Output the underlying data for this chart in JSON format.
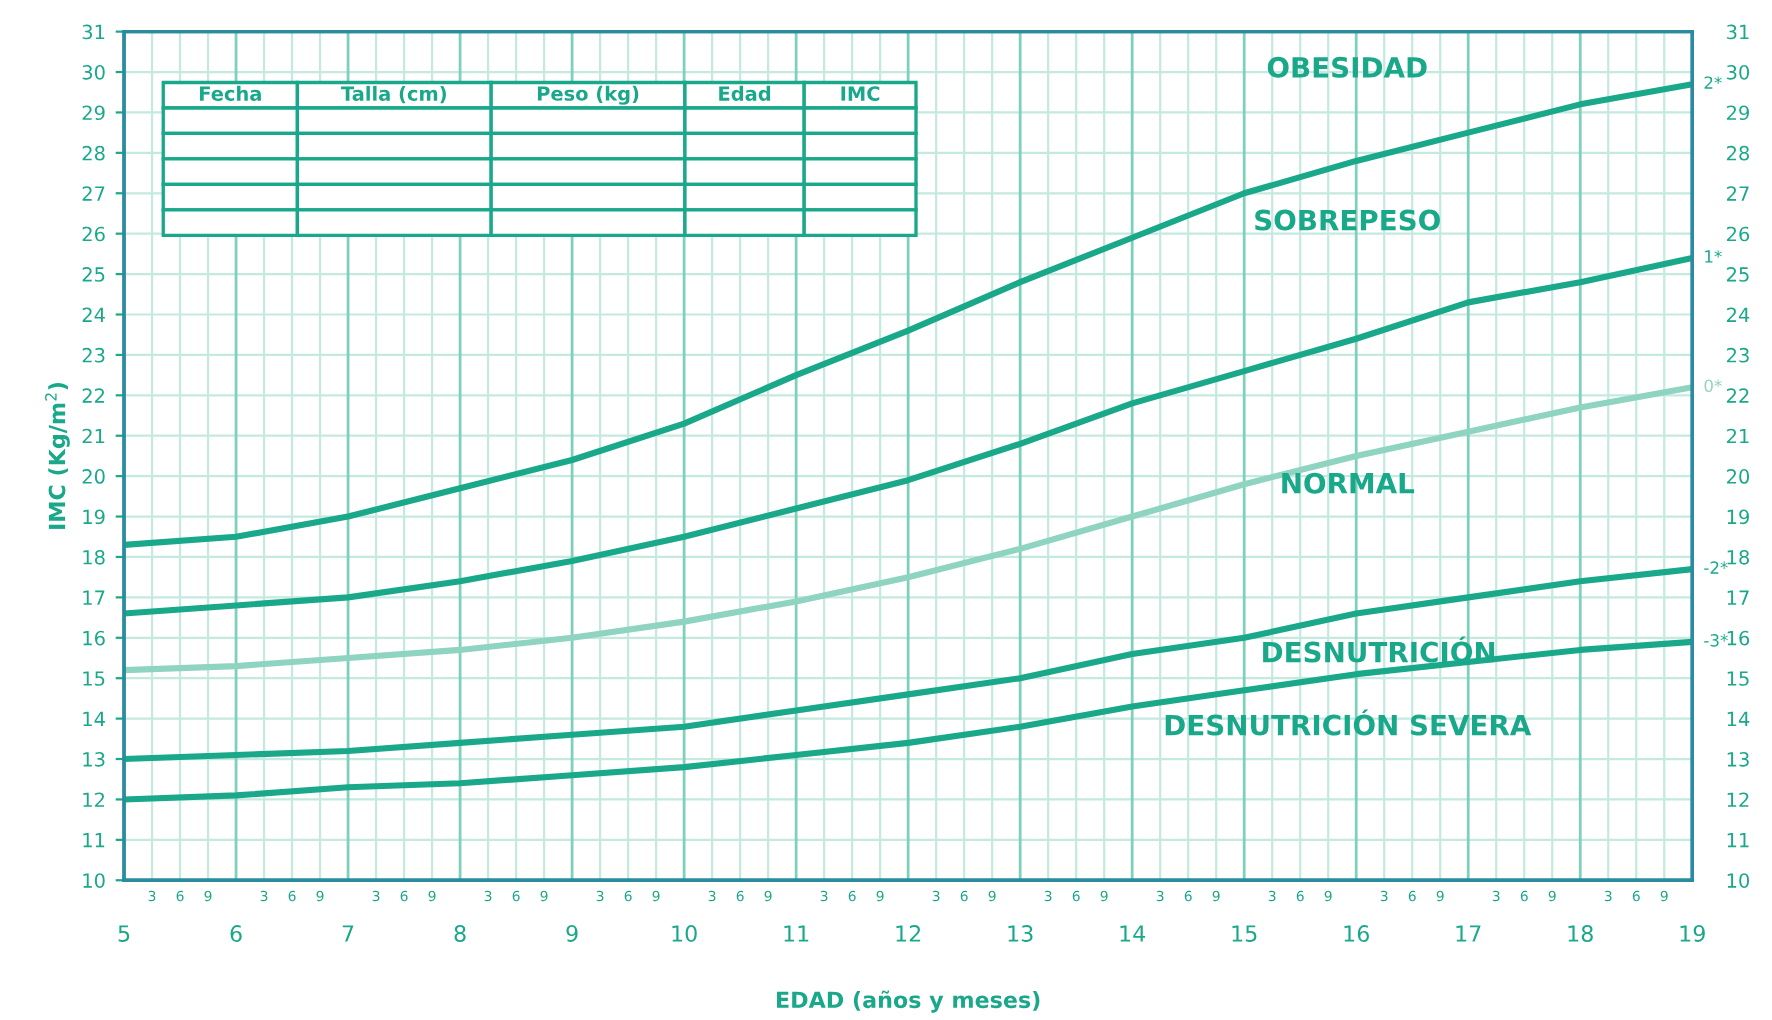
{
  "chart_data": {
    "type": "line",
    "xlabel": "EDAD (años y meses)",
    "ylabel": "IMC (Kg/m$^{2}$)",
    "x": [
      5,
      6,
      7,
      8,
      9,
      10,
      11,
      12,
      13,
      14,
      15,
      16,
      17,
      18,
      19
    ],
    "series": [
      {
        "name": "2*",
        "color": "#1aa88a",
        "values": [
          18.3,
          18.5,
          19.0,
          19.7,
          20.4,
          21.3,
          22.5,
          23.6,
          24.8,
          25.9,
          27.0,
          27.8,
          28.5,
          29.2,
          29.7
        ]
      },
      {
        "name": "1*",
        "color": "#1aa88a",
        "values": [
          16.6,
          16.8,
          17.0,
          17.4,
          17.9,
          18.5,
          19.2,
          19.9,
          20.8,
          21.8,
          22.6,
          23.4,
          24.3,
          24.8,
          25.4
        ]
      },
      {
        "name": "0*",
        "color": "#8fd3c1",
        "values": [
          15.2,
          15.3,
          15.5,
          15.7,
          16.0,
          16.4,
          16.9,
          17.5,
          18.2,
          19.0,
          19.8,
          20.5,
          21.1,
          21.7,
          22.2
        ]
      },
      {
        "name": "-2*",
        "color": "#1aa88a",
        "values": [
          13.0,
          13.1,
          13.2,
          13.4,
          13.6,
          13.8,
          14.2,
          14.6,
          15.0,
          15.6,
          16.0,
          16.6,
          17.0,
          17.4,
          17.7
        ]
      },
      {
        "name": "-3*",
        "color": "#1aa88a",
        "values": [
          12.0,
          12.1,
          12.3,
          12.4,
          12.6,
          12.8,
          13.1,
          13.4,
          13.8,
          14.3,
          14.7,
          15.1,
          15.4,
          15.7,
          15.9
        ]
      }
    ],
    "xlim": [
      5,
      19
    ],
    "xticks": [
      5,
      6,
      7,
      8,
      9,
      10,
      11,
      12,
      13,
      14,
      15,
      16,
      17,
      18,
      19
    ],
    "ylim": [
      10,
      31
    ],
    "yticks": [
      10,
      11,
      12,
      13,
      14,
      15,
      16,
      17,
      18,
      19,
      20,
      21,
      22,
      23,
      24,
      25,
      26,
      27,
      28,
      29,
      30,
      31
    ],
    "y2lim": [
      10,
      31
    ],
    "y2ticks": [
      10,
      11,
      12,
      13,
      14,
      15,
      16,
      17,
      18,
      19,
      20,
      21,
      22,
      23,
      24,
      25,
      26,
      27,
      28,
      29,
      30,
      31
    ],
    "grid": true,
    "marker": "none",
    "line_style": "solid",
    "annotations": [
      "OBESIDAD",
      "SOBREPESO",
      "NORMAL",
      "DESNUTRICIÓN",
      "DESNUTRICIÓN SEVERA",
      "Fecha",
      "Talla (cm)",
      "Peso (kg)",
      "Edad",
      "IMC",
      "3",
      "6",
      "9",
      "3",
      "6",
      "9",
      "3",
      "6",
      "9",
      "3",
      "6",
      "9",
      "3",
      "6",
      "9",
      "3",
      "6",
      "9",
      "3",
      "6",
      "9",
      "3",
      "6",
      "9",
      "3",
      "6",
      "9",
      "3",
      "6",
      "9",
      "3",
      "6",
      "9",
      "3",
      "6",
      "9",
      "3",
      "6",
      "9",
      "3",
      "6",
      "9"
    ]
  }
}
